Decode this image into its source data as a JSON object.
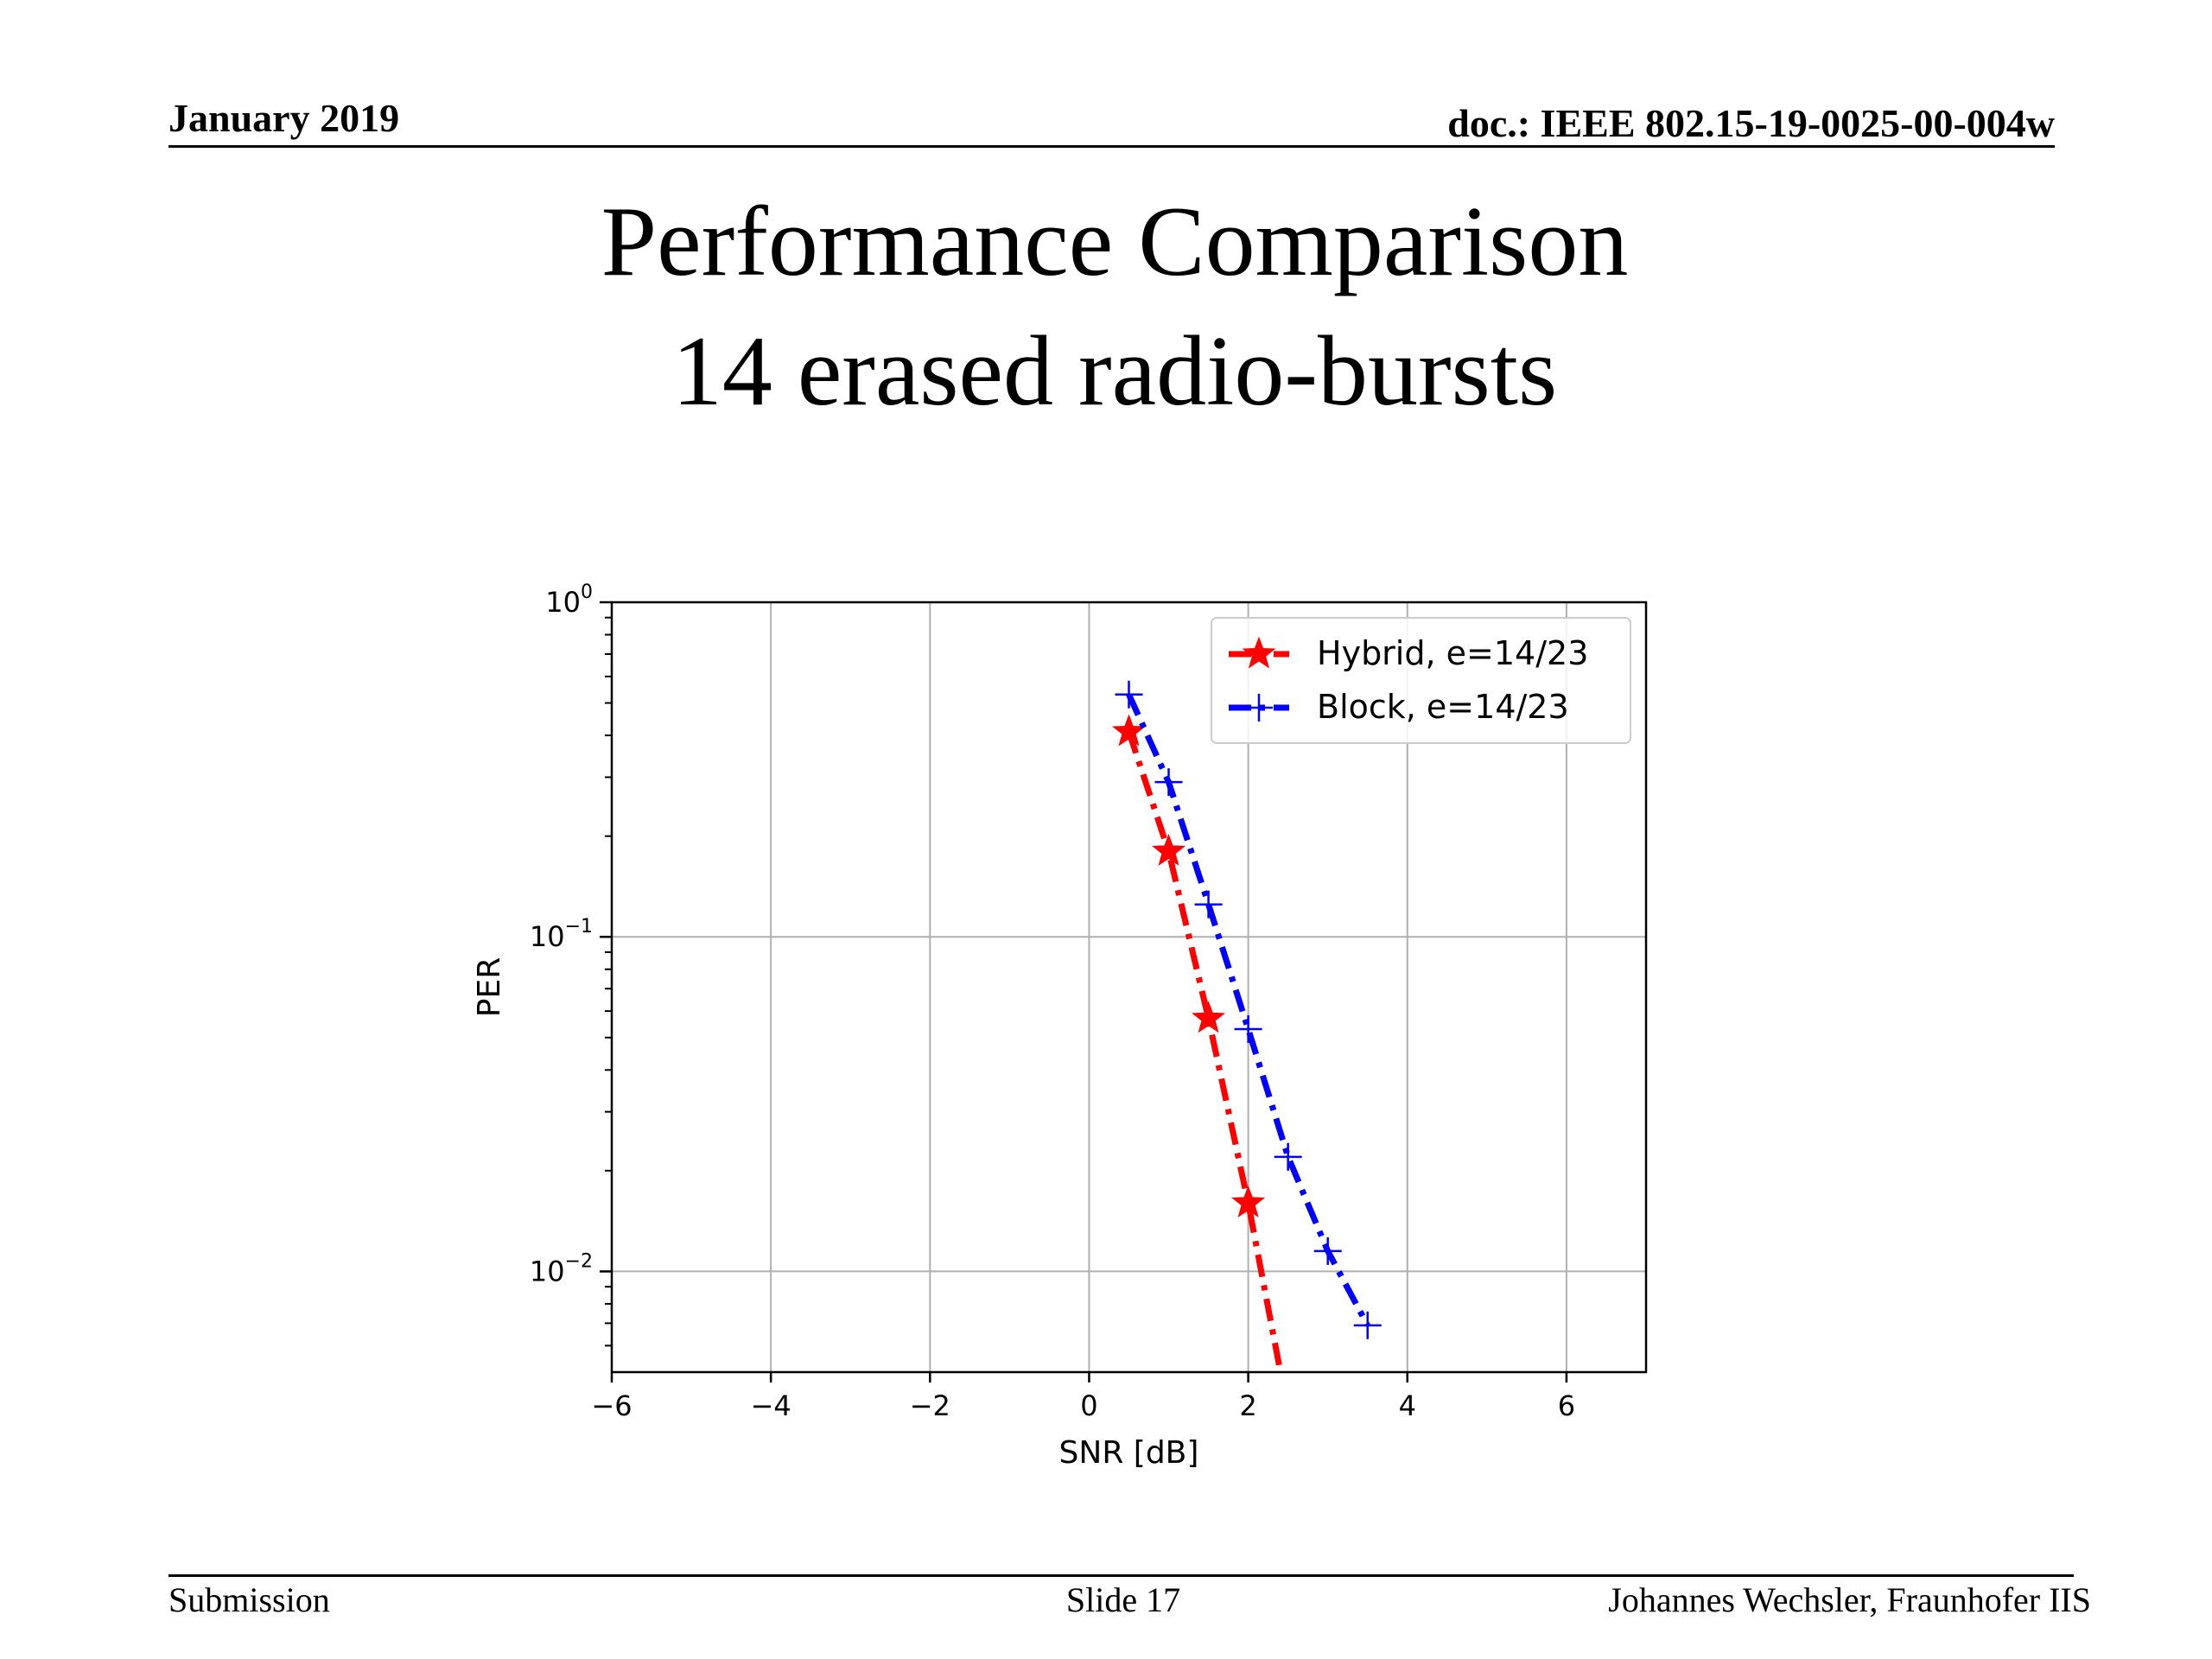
{
  "header": {
    "date": "January 2019",
    "doc": "doc.: IEEE 802.15-19-0025-00-004w"
  },
  "slide": {
    "title_line1": "Performance Comparison",
    "title_line2": "14 erased radio-bursts"
  },
  "footer": {
    "left": "Submission",
    "center": "Slide 17",
    "right": "Johannes Wechsler, Fraunhofer IIS"
  },
  "chart_data": {
    "type": "line",
    "xlabel": "SNR [dB]",
    "ylabel": "PER",
    "xlim": [
      -6,
      7
    ],
    "ylim": [
      0.005,
      1
    ],
    "yscale": "log",
    "xticks": [
      -6,
      -4,
      -2,
      0,
      2,
      4,
      6
    ],
    "xtick_labels": [
      "−6",
      "−4",
      "−2",
      "0",
      "2",
      "4",
      "6"
    ],
    "yticks": [
      {
        "value": 1,
        "base": "10",
        "exp": "0"
      },
      {
        "value": 0.1,
        "base": "10",
        "exp": "−1"
      },
      {
        "value": 0.01,
        "base": "10",
        "exp": "−2"
      }
    ],
    "grid": true,
    "legend_position": "top-right",
    "series": [
      {
        "name": "Hybrid, e=14/23",
        "color": "#ff0000",
        "marker": "star",
        "linestyle": "dashdot",
        "x": [
          0.5,
          1.0,
          1.5,
          2.0,
          2.5
        ],
        "y": [
          0.41,
          0.18,
          0.057,
          0.016,
          0.0038
        ]
      },
      {
        "name": "Block, e=14/23",
        "color": "#0000ff",
        "marker": "plus",
        "linestyle": "dashdot",
        "x": [
          0.5,
          1.0,
          1.5,
          2.0,
          2.5,
          3.0,
          3.5
        ],
        "y": [
          0.53,
          0.29,
          0.125,
          0.053,
          0.022,
          0.0115,
          0.0069
        ]
      }
    ]
  }
}
